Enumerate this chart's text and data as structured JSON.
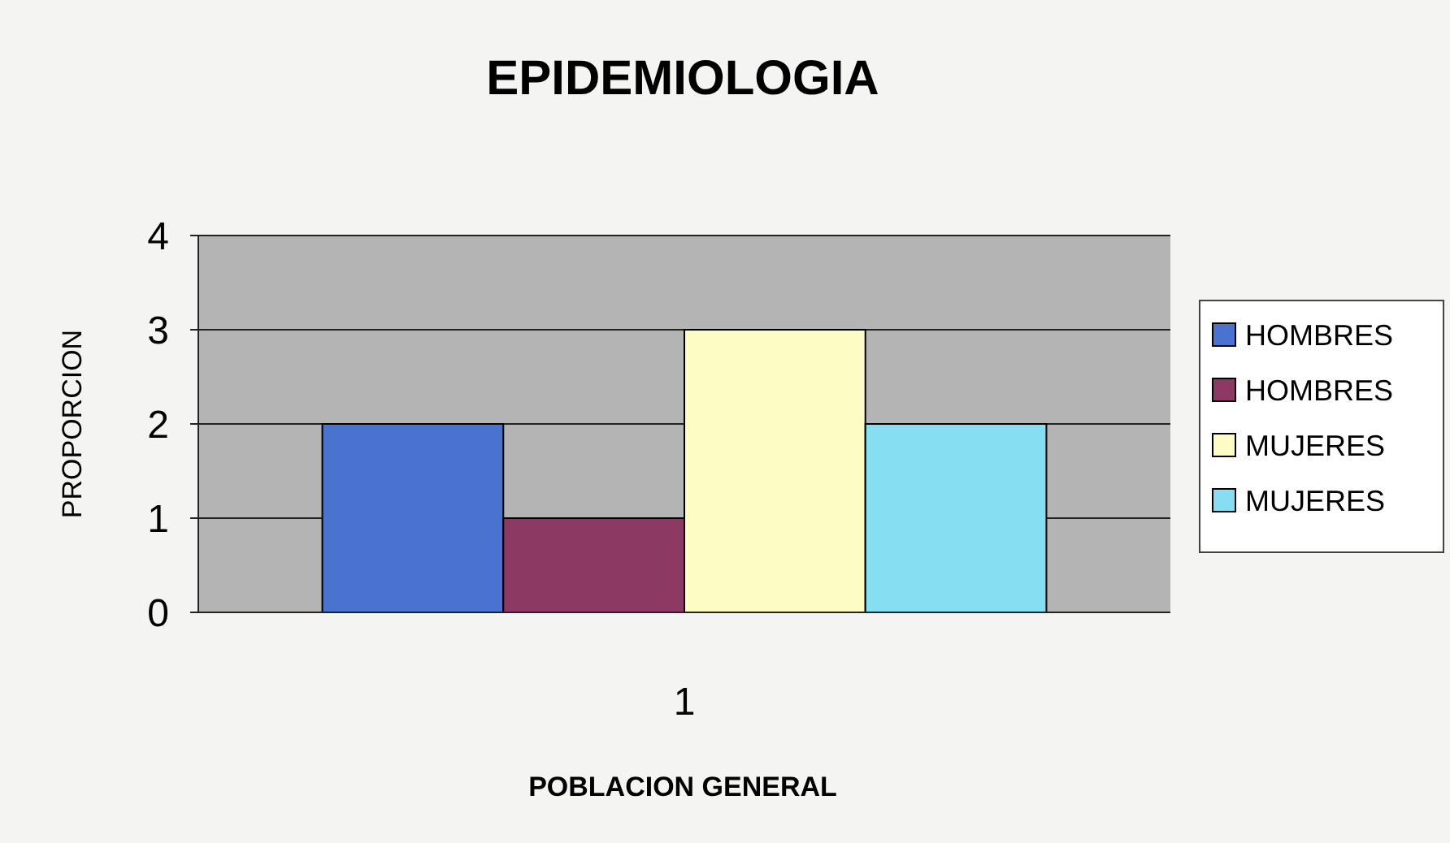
{
  "chart_data": {
    "type": "bar",
    "title": "EPIDEMIOLOGIA",
    "xlabel": "POBLACION GENERAL",
    "ylabel": "PROPORCION",
    "categories": [
      "1"
    ],
    "series": [
      {
        "name": "HOMBRES",
        "color": "#4a72d0",
        "values": [
          2
        ]
      },
      {
        "name": "HOMBRES",
        "color": "#8c3a64",
        "values": [
          1
        ]
      },
      {
        "name": "MUJERES",
        "color": "#fdfcc4",
        "values": [
          3
        ]
      },
      {
        "name": "MUJERES",
        "color": "#86def2",
        "values": [
          2
        ]
      }
    ],
    "ylim": [
      0,
      4
    ],
    "yticks": [
      0,
      1,
      2,
      3,
      4
    ],
    "grid": "y",
    "legend": "right"
  }
}
